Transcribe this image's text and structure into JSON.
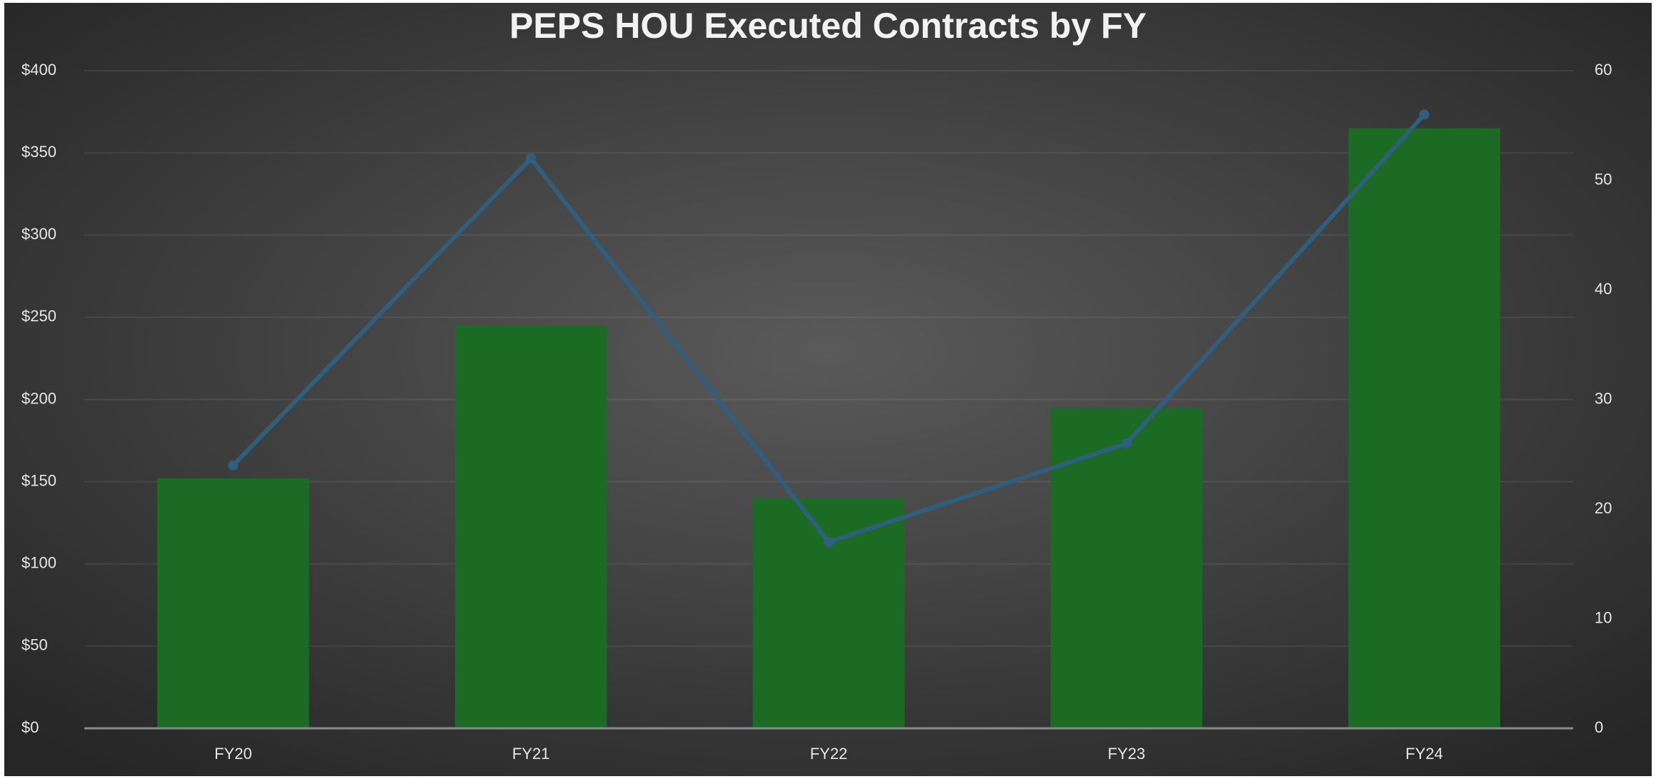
{
  "chart_data": {
    "type": "bar",
    "title": "PEPS HOU Executed Contracts by FY",
    "categories": [
      "FY20",
      "FY21",
      "FY22",
      "FY23",
      "FY24"
    ],
    "series": [
      {
        "type": "bar",
        "color": "#1c6b24",
        "values": [
          152,
          245,
          140,
          195,
          365
        ]
      },
      {
        "type": "line",
        "axis": "y2",
        "color": "#2f5f80",
        "values": [
          24,
          52,
          17,
          26,
          56
        ]
      }
    ],
    "ylim": [
      0,
      400
    ],
    "yticks": [
      {
        "value": 0,
        "label": "$0"
      },
      {
        "value": 50,
        "label": "$50"
      },
      {
        "value": 100,
        "label": "$100"
      },
      {
        "value": 150,
        "label": "$150"
      },
      {
        "value": 200,
        "label": "$200"
      },
      {
        "value": 250,
        "label": "$250"
      },
      {
        "value": 300,
        "label": "$300"
      },
      {
        "value": 350,
        "label": "$350"
      },
      {
        "value": 400,
        "label": "$400"
      }
    ],
    "y2lim": [
      0,
      60
    ],
    "y2ticks": [
      0,
      10,
      20,
      30,
      40,
      50,
      60
    ],
    "grid": true
  }
}
